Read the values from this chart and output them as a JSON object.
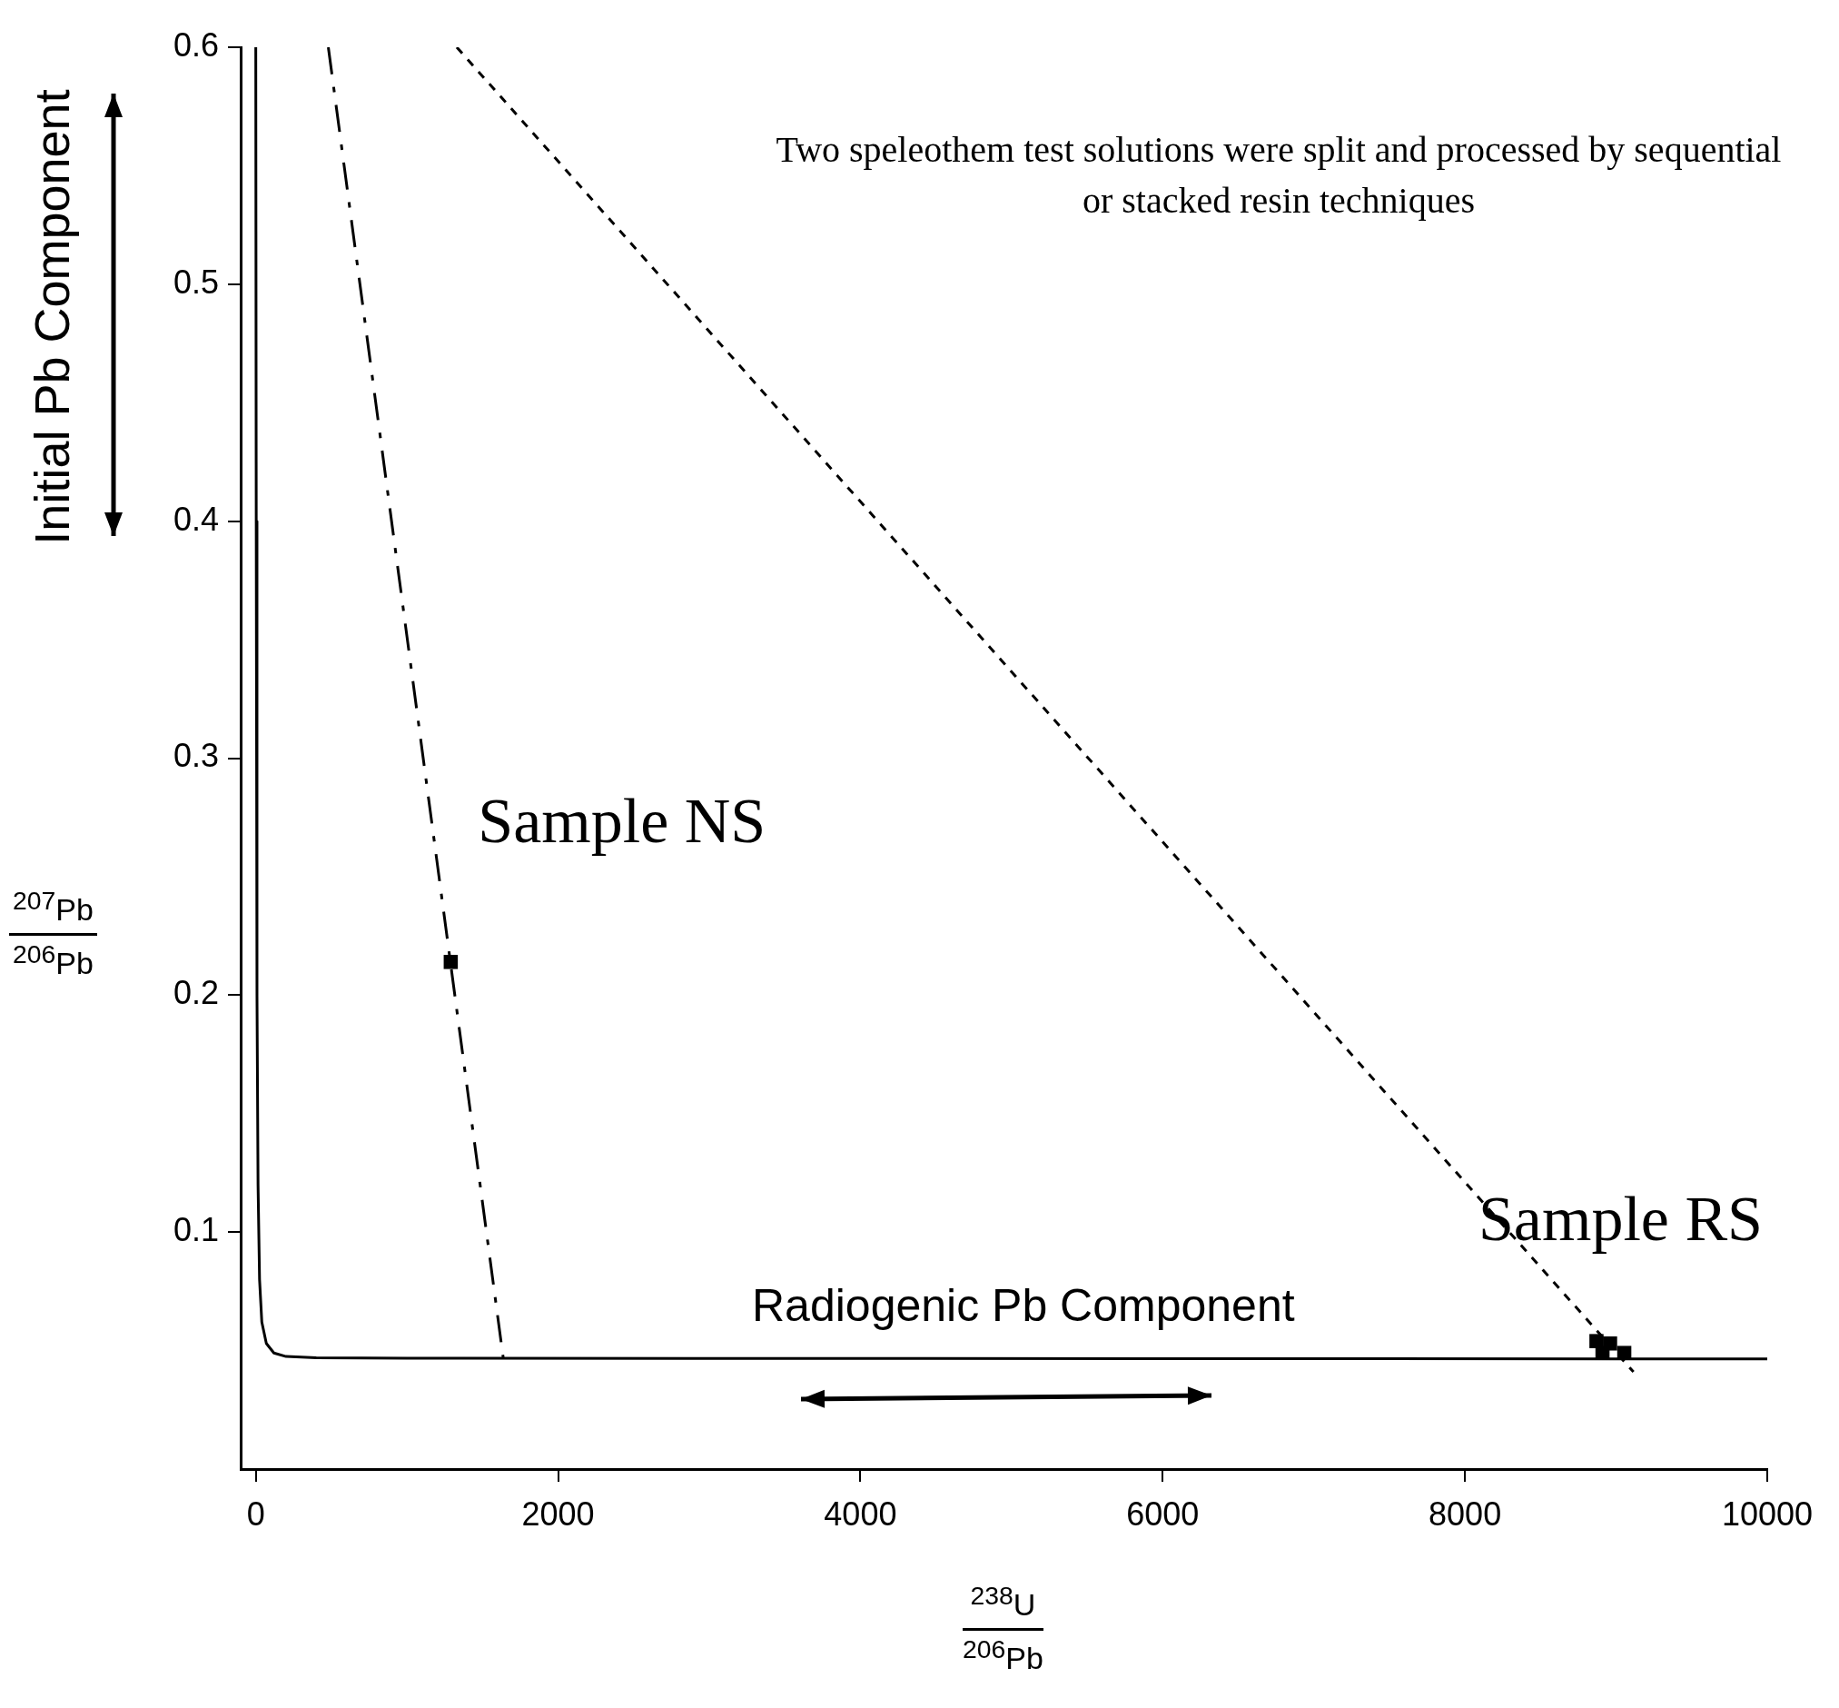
{
  "chart_data": {
    "type": "scatter",
    "xlabel": "$^{238}$U $^{206}$Pb",
    "ylabel": "$^{207}$Pb $^{206}$Pb",
    "annotations": [
      "Two speleothem test solutions were split and processed by sequential or stacked resin techniques",
      "Initial Pb Component",
      "Radiogenic Pb Component"
    ],
    "xlim": [
      -100,
      10000
    ],
    "xticks": [
      0,
      2000,
      4000,
      6000,
      8000,
      10000
    ],
    "ylim": [
      0,
      0.6
    ],
    "yticks": [
      0.1,
      0.2,
      0.3,
      0.4,
      0.5,
      0.6
    ],
    "grid": false,
    "legend": false,
    "series": [
      {
        "type": "line",
        "color": "#000000",
        "marker": "none",
        "line_style": "solid",
        "x": [
          0,
          3,
          8,
          15,
          25,
          40,
          70,
          120,
          200,
          400,
          1000,
          3000,
          10000
        ],
        "values": [
          0.6,
          0.4,
          0.2,
          0.12,
          0.08,
          0.062,
          0.053,
          0.049,
          0.0475,
          0.047,
          0.0468,
          0.0467,
          0.0465
        ]
      },
      {
        "type": "line",
        "color": "#000000",
        "marker": "none",
        "line_style": "dashed",
        "x": [
          480,
          1638
        ],
        "values": [
          0.6,
          0.0465
        ]
      },
      {
        "type": "line",
        "color": "#000000",
        "marker": "none",
        "line_style": "dotted",
        "x": [
          1330,
          9115
        ],
        "values": [
          0.6,
          0.041
        ]
      },
      {
        "type": "scatter",
        "name": "Sample NS",
        "color": "#000000",
        "marker": "square",
        "x": [
          1290
        ],
        "values": [
          0.214
        ]
      },
      {
        "type": "scatter",
        "name": "Sample RS",
        "color": "#000000",
        "marker": "square",
        "x": [
          8870,
          8960,
          8910,
          9054
        ],
        "values": [
          0.054,
          0.053,
          0.049,
          0.049
        ]
      }
    ]
  }
}
